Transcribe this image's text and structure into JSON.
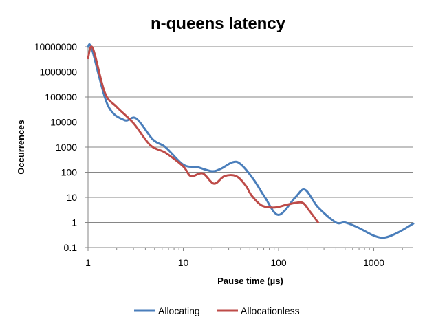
{
  "chart_data": {
    "type": "line",
    "title": "n-queens latency",
    "xlabel": "Pause time (µs)",
    "ylabel": "Occurrences",
    "xscale": "log",
    "yscale": "log",
    "xlim": [
      1,
      2600
    ],
    "ylim": [
      0.1,
      10000000
    ],
    "x_ticks": [
      1,
      10,
      100,
      1000
    ],
    "x_tick_labels": [
      "1",
      "10",
      "100",
      "1000"
    ],
    "y_ticks": [
      0.1,
      1,
      10,
      100,
      1000,
      10000,
      100000,
      1000000,
      10000000
    ],
    "y_tick_labels": [
      "0.1",
      "1",
      "10",
      "100",
      "1000",
      "10000",
      "100000",
      "1000000",
      "10000000"
    ],
    "grid": "horizontal",
    "legend_position": "bottom",
    "series": [
      {
        "name": "Allocating",
        "color": "#4a7ebb",
        "x": [
          1,
          1.1,
          1.6,
          2.4,
          3.2,
          4.8,
          6.5,
          10,
          14,
          20,
          25,
          33,
          40,
          55,
          72,
          100,
          150,
          190,
          260,
          400,
          500,
          700,
          1000,
          1300,
          1800,
          2600
        ],
        "y": [
          10000000,
          8000000,
          50000,
          12000,
          14000,
          2000,
          1000,
          200,
          160,
          110,
          140,
          250,
          210,
          50,
          10,
          2,
          10,
          20,
          4,
          1,
          1,
          0.6,
          0.3,
          0.25,
          0.4,
          0.9
        ]
      },
      {
        "name": "Allocationless",
        "color": "#be4b48",
        "x": [
          1,
          1.12,
          1.5,
          2,
          3,
          4.5,
          6.5,
          10,
          12,
          16,
          21,
          27,
          36,
          45,
          52,
          65,
          80,
          95,
          120,
          150,
          180,
          210,
          260
        ],
        "y": [
          3500000,
          9000000,
          150000,
          40000,
          9000,
          1200,
          600,
          170,
          70,
          90,
          35,
          70,
          70,
          30,
          12,
          5,
          4,
          4,
          5,
          6,
          6,
          3,
          1
        ]
      }
    ]
  }
}
